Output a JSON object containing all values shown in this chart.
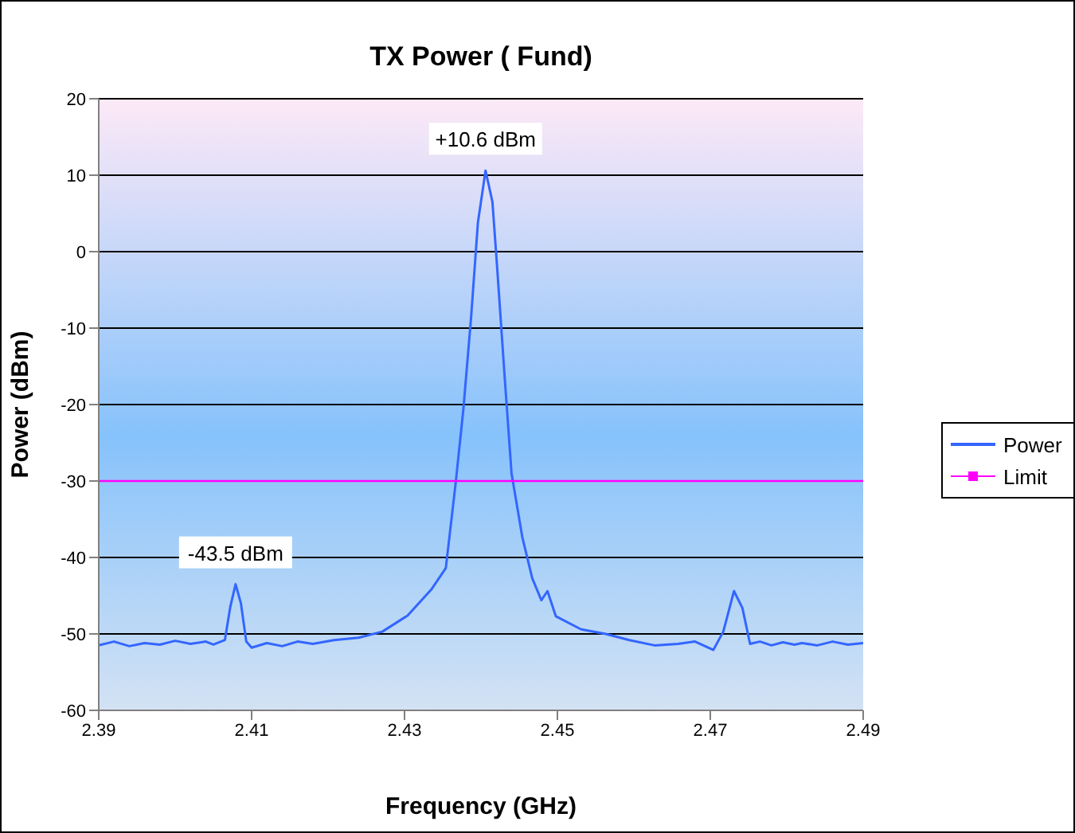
{
  "chart_data": {
    "type": "line",
    "title": "TX Power ( Fund)",
    "xlabel": "Frequency (GHz)",
    "ylabel": "Power (dBm)",
    "xlim": [
      2.39,
      2.49
    ],
    "xticks": [
      2.39,
      2.41,
      2.43,
      2.45,
      2.47,
      2.49
    ],
    "ylim": [
      -60,
      20
    ],
    "yticks": [
      -60,
      -50,
      -40,
      -30,
      -20,
      -10,
      0,
      10,
      20
    ],
    "grid": "y",
    "legend": "right",
    "series": [
      {
        "name": "Power",
        "color": "#3366ff",
        "x": [
          2.39,
          2.392,
          2.394,
          2.396,
          2.398,
          2.4,
          2.402,
          2.404,
          2.405,
          2.4065,
          2.4072,
          2.4079,
          2.4086,
          2.4093,
          2.41,
          2.412,
          2.414,
          2.416,
          2.418,
          2.4208,
          2.424,
          2.4271,
          2.4304,
          2.4335,
          2.4354,
          2.4367,
          2.4377,
          2.4387,
          2.4396,
          2.4406,
          2.4415,
          2.4421,
          2.4431,
          2.444,
          2.4454,
          2.4467,
          2.4479,
          2.4487,
          2.4498,
          2.4531,
          2.4563,
          2.4594,
          2.4627,
          2.4658,
          2.468,
          2.4704,
          2.4717,
          2.4731,
          2.4742,
          2.4752,
          2.4765,
          2.478,
          2.4795,
          2.481,
          2.482,
          2.484,
          2.486,
          2.488,
          2.49
        ],
        "values": [
          -51.5,
          -51.0,
          -51.6,
          -51.2,
          -51.4,
          -50.9,
          -51.3,
          -51.0,
          -51.4,
          -50.8,
          -46.5,
          -43.5,
          -46.0,
          -51.0,
          -51.8,
          -51.2,
          -51.6,
          -51.0,
          -51.3,
          -50.8,
          -50.5,
          -49.7,
          -47.6,
          -44.2,
          -41.4,
          -30.2,
          -20.6,
          -8.7,
          3.8,
          10.6,
          6.5,
          -1.8,
          -16.4,
          -29.0,
          -37.3,
          -42.7,
          -45.6,
          -44.4,
          -47.7,
          -49.4,
          -50.0,
          -50.8,
          -51.5,
          -51.3,
          -51.0,
          -52.1,
          -49.7,
          -44.4,
          -46.6,
          -51.3,
          -51.0,
          -51.5,
          -51.1,
          -51.4,
          -51.2,
          -51.5,
          -51.0,
          -51.4,
          -51.2
        ]
      },
      {
        "name": "Limit",
        "color": "#ff00ff",
        "x": [
          2.39,
          2.49
        ],
        "values": [
          -30,
          -30
        ]
      }
    ],
    "annotations": [
      {
        "text": "+10.6 dBm",
        "x": 2.4406,
        "y": 10.6
      },
      {
        "text": "-43.5 dBm",
        "x": 2.4079,
        "y": -43.5
      }
    ]
  }
}
